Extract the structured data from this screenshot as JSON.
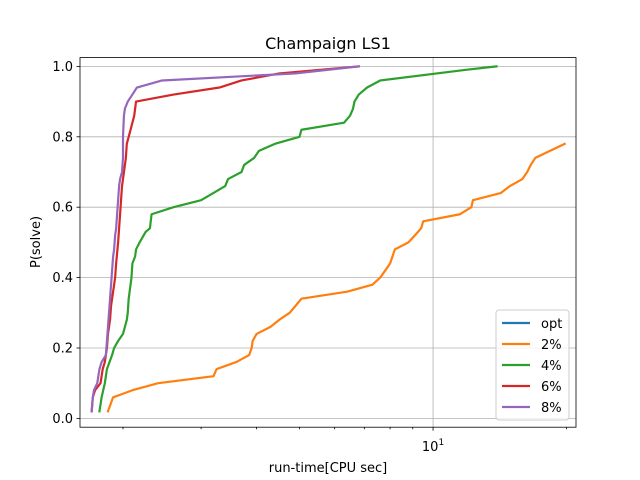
{
  "chart_data": {
    "type": "line",
    "title": "Champaign LS1",
    "xlabel": "run-time[CPU sec]",
    "ylabel": "P(solve)",
    "x_scale": "log",
    "xlim": [
      1.6,
      21
    ],
    "ylim": [
      -0.025,
      1.025
    ],
    "x_major_ticks": [
      {
        "value": 10,
        "base": "10",
        "exp": "1"
      }
    ],
    "x_minor_ticks": [
      2,
      3,
      4,
      5,
      6,
      7,
      8,
      9,
      20
    ],
    "y_ticks": [
      0.0,
      0.2,
      0.4,
      0.6,
      0.8,
      1.0
    ],
    "y_tick_labels": [
      "0.0",
      "0.2",
      "0.4",
      "0.6",
      "0.8",
      "1.0"
    ],
    "grid": true,
    "legend_position": "lower-right",
    "series": [
      {
        "name": "opt",
        "color": "#1f77b4",
        "points": []
      },
      {
        "name": "2%",
        "color": "#ff7f0e",
        "points": [
          [
            1.85,
            0.02
          ],
          [
            1.9,
            0.06
          ],
          [
            2.0,
            0.07
          ],
          [
            2.1,
            0.08
          ],
          [
            2.4,
            0.1
          ],
          [
            3.2,
            0.12
          ],
          [
            3.25,
            0.14
          ],
          [
            3.6,
            0.16
          ],
          [
            3.85,
            0.18
          ],
          [
            3.9,
            0.2
          ],
          [
            3.92,
            0.22
          ],
          [
            4.0,
            0.24
          ],
          [
            4.3,
            0.26
          ],
          [
            4.5,
            0.28
          ],
          [
            4.75,
            0.3
          ],
          [
            4.9,
            0.32
          ],
          [
            5.05,
            0.34
          ],
          [
            6.4,
            0.36
          ],
          [
            7.3,
            0.38
          ],
          [
            7.6,
            0.4
          ],
          [
            7.8,
            0.42
          ],
          [
            8.0,
            0.44
          ],
          [
            8.1,
            0.46
          ],
          [
            8.2,
            0.48
          ],
          [
            8.8,
            0.5
          ],
          [
            9.1,
            0.52
          ],
          [
            9.4,
            0.54
          ],
          [
            9.5,
            0.56
          ],
          [
            11.5,
            0.58
          ],
          [
            12.2,
            0.6
          ],
          [
            12.3,
            0.62
          ],
          [
            14.2,
            0.64
          ],
          [
            14.9,
            0.66
          ],
          [
            15.9,
            0.68
          ],
          [
            16.3,
            0.7
          ],
          [
            16.6,
            0.72
          ],
          [
            17.0,
            0.74
          ],
          [
            19.8,
            0.78
          ]
        ]
      },
      {
        "name": "4%",
        "color": "#2ca02c",
        "points": [
          [
            1.77,
            0.02
          ],
          [
            1.79,
            0.06
          ],
          [
            1.82,
            0.1
          ],
          [
            1.84,
            0.14
          ],
          [
            1.89,
            0.18
          ],
          [
            1.91,
            0.2
          ],
          [
            1.95,
            0.22
          ],
          [
            2.0,
            0.24
          ],
          [
            2.02,
            0.26
          ],
          [
            2.04,
            0.28
          ],
          [
            2.05,
            0.3
          ],
          [
            2.06,
            0.34
          ],
          [
            2.08,
            0.38
          ],
          [
            2.09,
            0.4
          ],
          [
            2.1,
            0.44
          ],
          [
            2.13,
            0.46
          ],
          [
            2.14,
            0.48
          ],
          [
            2.18,
            0.5
          ],
          [
            2.25,
            0.53
          ],
          [
            2.3,
            0.54
          ],
          [
            2.32,
            0.58
          ],
          [
            2.6,
            0.6
          ],
          [
            3.0,
            0.62
          ],
          [
            3.4,
            0.66
          ],
          [
            3.45,
            0.68
          ],
          [
            3.7,
            0.7
          ],
          [
            3.75,
            0.72
          ],
          [
            3.95,
            0.74
          ],
          [
            4.05,
            0.76
          ],
          [
            4.4,
            0.78
          ],
          [
            5.0,
            0.8
          ],
          [
            5.05,
            0.82
          ],
          [
            6.3,
            0.84
          ],
          [
            6.5,
            0.86
          ],
          [
            6.6,
            0.88
          ],
          [
            6.65,
            0.9
          ],
          [
            6.8,
            0.92
          ],
          [
            7.1,
            0.94
          ],
          [
            7.6,
            0.96
          ],
          [
            11.8,
            0.99
          ],
          [
            13.9,
            1.0
          ]
        ]
      },
      {
        "name": "6%",
        "color": "#d62728",
        "points": [
          [
            1.7,
            0.02
          ],
          [
            1.71,
            0.06
          ],
          [
            1.73,
            0.08
          ],
          [
            1.78,
            0.1
          ],
          [
            1.8,
            0.14
          ],
          [
            1.82,
            0.16
          ],
          [
            1.84,
            0.2
          ],
          [
            1.85,
            0.24
          ],
          [
            1.87,
            0.28
          ],
          [
            1.88,
            0.32
          ],
          [
            1.9,
            0.36
          ],
          [
            1.92,
            0.4
          ],
          [
            1.93,
            0.44
          ],
          [
            1.95,
            0.5
          ],
          [
            1.96,
            0.54
          ],
          [
            1.97,
            0.58
          ],
          [
            1.98,
            0.62
          ],
          [
            1.99,
            0.66
          ],
          [
            2.01,
            0.7
          ],
          [
            2.03,
            0.74
          ],
          [
            2.04,
            0.78
          ],
          [
            2.06,
            0.8
          ],
          [
            2.08,
            0.82
          ],
          [
            2.1,
            0.84
          ],
          [
            2.12,
            0.86
          ],
          [
            2.14,
            0.9
          ],
          [
            2.6,
            0.92
          ],
          [
            3.3,
            0.94
          ],
          [
            3.7,
            0.96
          ],
          [
            4.5,
            0.98
          ],
          [
            6.8,
            1.0
          ]
        ]
      },
      {
        "name": "8%",
        "color": "#9467bd",
        "points": [
          [
            1.7,
            0.02
          ],
          [
            1.71,
            0.06
          ],
          [
            1.72,
            0.08
          ],
          [
            1.75,
            0.1
          ],
          [
            1.77,
            0.14
          ],
          [
            1.79,
            0.16
          ],
          [
            1.83,
            0.18
          ],
          [
            1.84,
            0.22
          ],
          [
            1.85,
            0.26
          ],
          [
            1.86,
            0.3
          ],
          [
            1.87,
            0.34
          ],
          [
            1.88,
            0.38
          ],
          [
            1.89,
            0.42
          ],
          [
            1.9,
            0.46
          ],
          [
            1.91,
            0.48
          ],
          [
            1.92,
            0.52
          ],
          [
            1.93,
            0.54
          ],
          [
            1.94,
            0.58
          ],
          [
            1.95,
            0.62
          ],
          [
            1.96,
            0.66
          ],
          [
            1.97,
            0.68
          ],
          [
            1.99,
            0.7
          ],
          [
            2.0,
            0.74
          ],
          [
            2.0,
            0.8
          ],
          [
            2.01,
            0.86
          ],
          [
            2.02,
            0.88
          ],
          [
            2.05,
            0.9
          ],
          [
            2.1,
            0.92
          ],
          [
            2.15,
            0.94
          ],
          [
            2.45,
            0.96
          ],
          [
            4.9,
            0.98
          ],
          [
            6.8,
            1.0
          ]
        ]
      }
    ]
  }
}
